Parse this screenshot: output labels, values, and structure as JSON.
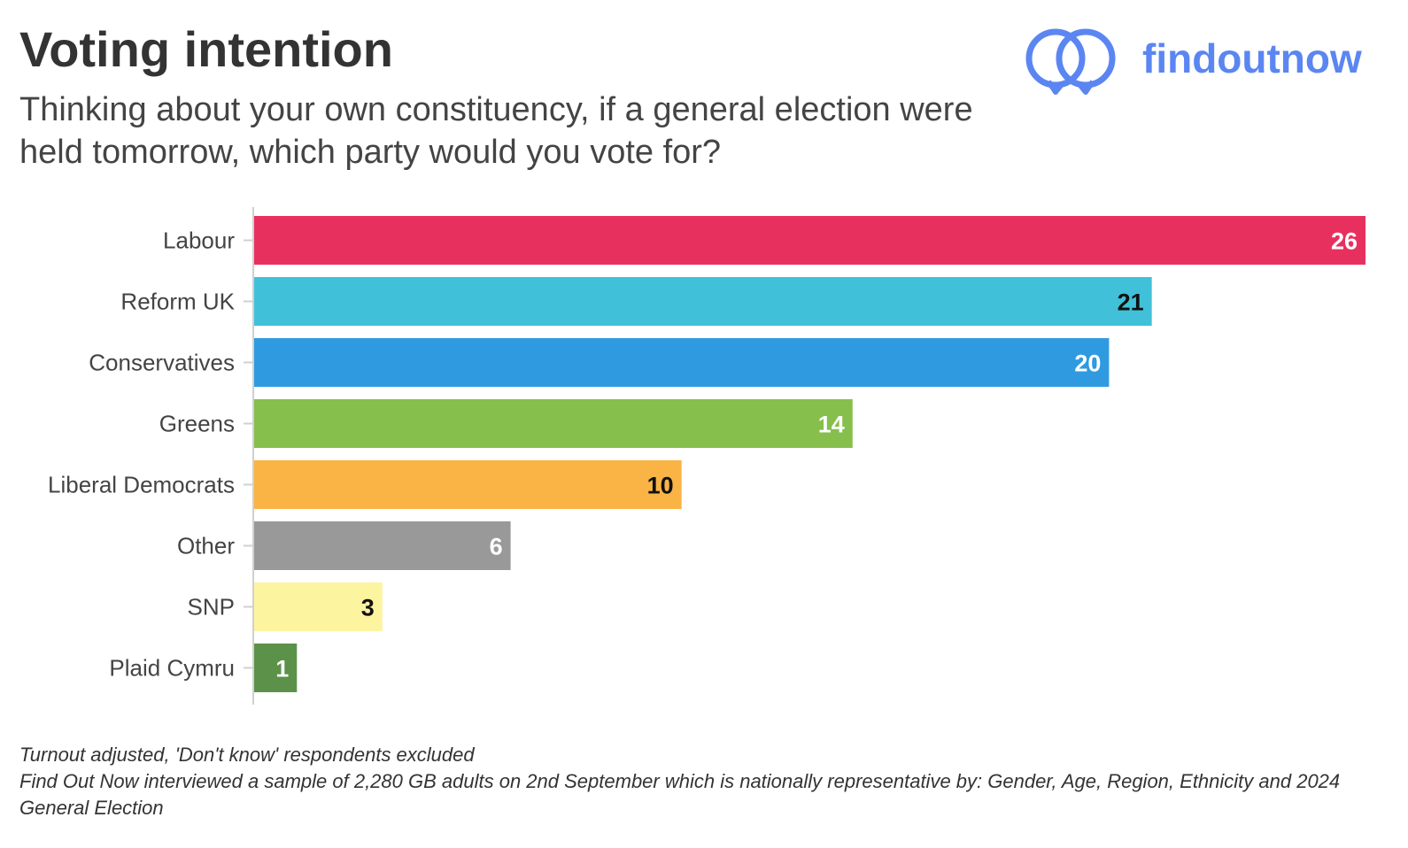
{
  "header": {
    "title": "Voting intention",
    "subtitle": "Thinking about your own constituency, if a general election were held tomorrow, which party would you vote for?",
    "brand": "findoutnow"
  },
  "colors": {
    "brand": "#5b86f2",
    "title": "#333333"
  },
  "chart_data": {
    "type": "bar",
    "orientation": "horizontal",
    "categories": [
      "Labour",
      "Reform UK",
      "Conservatives",
      "Greens",
      "Liberal Democrats",
      "Other",
      "SNP",
      "Plaid Cymru"
    ],
    "values": [
      26,
      21,
      20,
      14,
      10,
      6,
      3,
      1
    ],
    "colors": [
      "#e8305f",
      "#40c1d9",
      "#2f9ae0",
      "#86bf4c",
      "#f9b445",
      "#999999",
      "#fdf4a0",
      "#5c9149"
    ],
    "label_colors": [
      "#ffffff",
      "#111111",
      "#ffffff",
      "#ffffff",
      "#111111",
      "#ffffff",
      "#111111",
      "#ffffff"
    ],
    "xlim": [
      0,
      26
    ],
    "grid": false,
    "legend": "none"
  },
  "footnote": {
    "line1": "Turnout adjusted, 'Don't know' respondents excluded",
    "line2": "Find Out Now interviewed a sample of 2,280 GB adults on 2nd September which is nationally representative by: Gender, Age, Region, Ethnicity and 2024 General Election"
  }
}
